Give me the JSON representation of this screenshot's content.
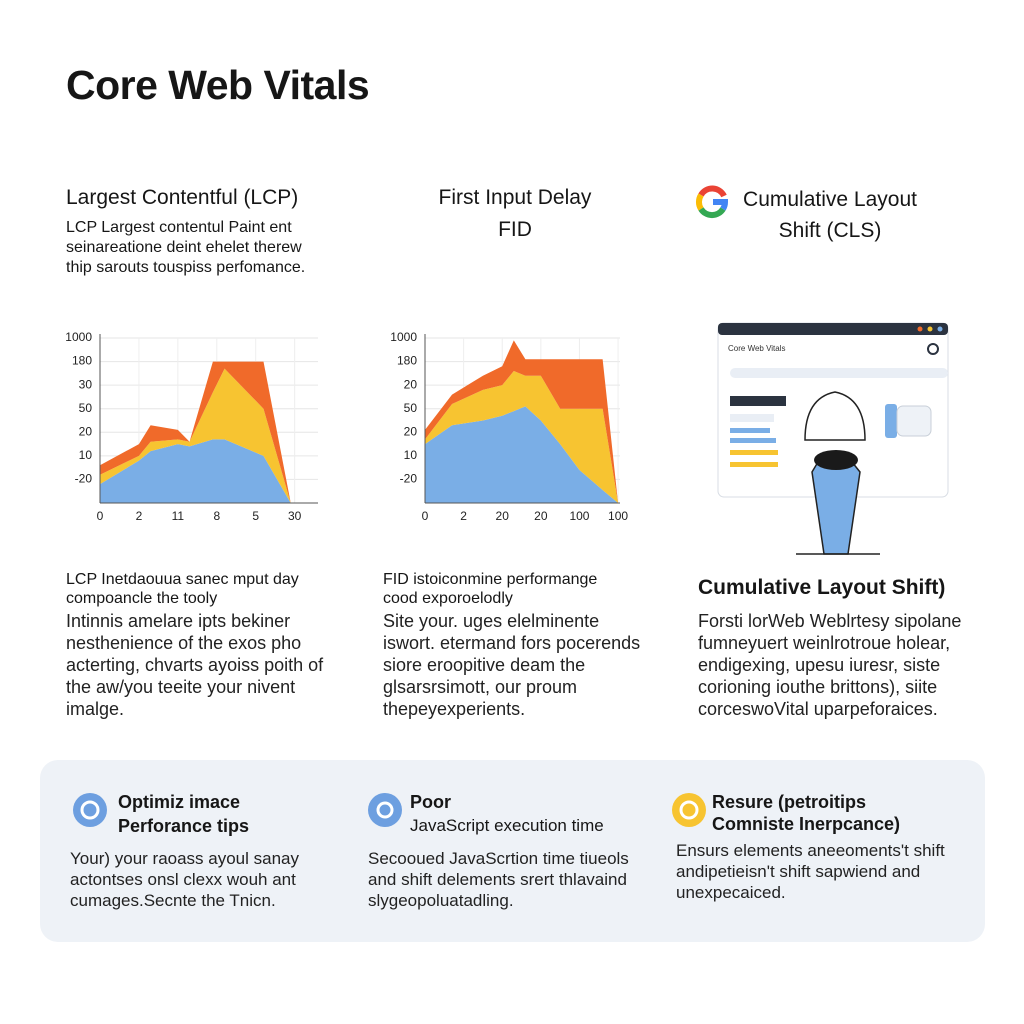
{
  "title": "Core Web Vitals",
  "columns": [
    {
      "heading": "Largest Contentful (LCP)",
      "description": "LCP Largest contentul Paint ent seinareatione deint ehelet therew thip sarouts touspiss perfomance."
    },
    {
      "heading": "First Input Delay",
      "subheading": "FID"
    },
    {
      "heading": "Cumulative Layout Shift (CLS)"
    }
  ],
  "cls_mock": {
    "title": "Core Web Vitals"
  },
  "chart_data": [
    {
      "type": "stacked-area",
      "grid": true,
      "x": [
        0,
        1,
        1.3,
        2,
        2.3,
        2.9,
        3.2,
        4.2,
        4.9
      ],
      "xlim": [
        0,
        5.6
      ],
      "xticks": [
        {
          "value": 0,
          "label": "0"
        },
        {
          "value": 1,
          "label": "2"
        },
        {
          "value": 2,
          "label": "11"
        },
        {
          "value": 3,
          "label": "8"
        },
        {
          "value": 4,
          "label": "5"
        },
        {
          "value": 5,
          "label": "30"
        }
      ],
      "ylim": [
        0,
        7
      ],
      "yticks": [
        {
          "value": 1,
          "label": "-20"
        },
        {
          "value": 2,
          "label": "10"
        },
        {
          "value": 3,
          "label": "20"
        },
        {
          "value": 4,
          "label": "50"
        },
        {
          "value": 5,
          "label": "30"
        },
        {
          "value": 6,
          "label": "180"
        },
        {
          "value": 7,
          "label": "1000"
        }
      ],
      "series": [
        {
          "color": "#7aaee6",
          "values": [
            0.8,
            1.8,
            2.2,
            2.5,
            2.4,
            2.7,
            2.7,
            2.0,
            0
          ]
        },
        {
          "color": "#f7c431",
          "values": [
            0.4,
            0.2,
            0.4,
            0.2,
            0.2,
            2.0,
            3.0,
            2.0,
            0
          ]
        },
        {
          "color": "#f06a2a",
          "values": [
            0.4,
            0.5,
            0.7,
            0.4,
            0,
            1.3,
            0.3,
            2.0,
            0
          ]
        }
      ]
    },
    {
      "type": "stacked-area",
      "grid": true,
      "x": [
        0,
        0.7,
        1.5,
        2.0,
        2.3,
        2.6,
        3.0,
        3.5,
        4.0,
        4.6,
        5.0
      ],
      "xlim": [
        0,
        5.05
      ],
      "xticks": [
        {
          "value": 0,
          "label": "0"
        },
        {
          "value": 1,
          "label": "2"
        },
        {
          "value": 2,
          "label": "20"
        },
        {
          "value": 3,
          "label": "20"
        },
        {
          "value": 4,
          "label": "100"
        },
        {
          "value": 5,
          "label": "100"
        }
      ],
      "ylim": [
        0,
        7
      ],
      "yticks": [
        {
          "value": 1,
          "label": "-20"
        },
        {
          "value": 2,
          "label": "10"
        },
        {
          "value": 3,
          "label": "20"
        },
        {
          "value": 4,
          "label": "50"
        },
        {
          "value": 5,
          "label": "20"
        },
        {
          "value": 6,
          "label": "180"
        },
        {
          "value": 7,
          "label": "1000"
        }
      ],
      "series": [
        {
          "color": "#7aaee6",
          "values": [
            2.5,
            3.3,
            3.5,
            3.7,
            3.9,
            4.1,
            3.5,
            2.5,
            1.4,
            0.55,
            0
          ]
        },
        {
          "color": "#f7c431",
          "values": [
            0.2,
            0.9,
            1.3,
            1.3,
            1.7,
            1.3,
            1.9,
            1.5,
            2.6,
            3.45,
            0
          ]
        },
        {
          "color": "#f06a2a",
          "values": [
            0.4,
            0.4,
            0.6,
            0.8,
            1.3,
            0.7,
            0.7,
            2.1,
            2.1,
            2.1,
            0
          ]
        }
      ]
    }
  ],
  "details": [
    {
      "heading": "LCP Inetdaouua sanec mput day compoancle the tooly",
      "body": "Intinnis amelare ipts bekiner nesthenience of the exos pho acterting, chvarts ayoiss poith of the aw/you teeite your nivent imalge."
    },
    {
      "heading": "FID istoiconmine performange cood exporoelodly",
      "body": "Site your. uges elelminente iswort. etermand fors pocerends siore eroopitive deam the glsarsrsimott, our proum thepeyexperients."
    },
    {
      "heading": "Cumulative Layout Shift)",
      "body": "Forsti lorWeb Weblrtesy sipolane fumneyuert weinlrotroue holear, endigexing, upesu iuresr, siste corioning iouthe brittons), siite corceswoVital uparpeforaices."
    }
  ],
  "tips": [
    {
      "title": "Optimiz imace",
      "subtitle": "Perforance tips",
      "body": "Your) your raoass ayoul sanay actontses onsl clexx wouh ant cumages.Secnte the Tnicn."
    },
    {
      "title": "Poor",
      "subtitle": "JavaScript execution time",
      "body": "Secooued JavaScrtion time tiueols and shift delements srert thlavaind slygeopoluatadling."
    },
    {
      "title": "Resure (petroitips",
      "subtitle": "Comniste Inerpcance)",
      "body": "Ensurs elements aneeoments't shift andipetieisn't shift sapwiend and unexpecaiced."
    }
  ]
}
